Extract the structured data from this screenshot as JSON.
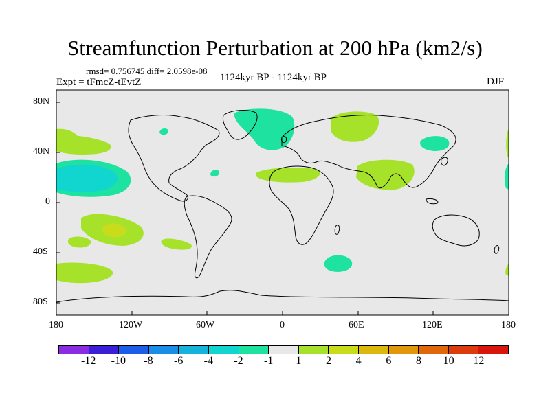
{
  "title": "Streamfunction Perturbation at 200 hPa (km2/s)",
  "stats": "rmsd= 0.756745 diff= 2.0598e-08",
  "experiment": "Expt = tFmcZ-tEvtZ",
  "period": "1124kyr BP - 1124kyr BP",
  "season": "DJF",
  "map": {
    "lat_ticks": [
      "80N",
      "40N",
      "0",
      "40S",
      "80S"
    ],
    "lon_ticks": [
      "180",
      "120W",
      "60W",
      "0",
      "60E",
      "120E",
      "180"
    ],
    "colors": {
      "ocean": "#e8e8e8",
      "land_line": "#000000"
    }
  },
  "colorbar": {
    "colors": [
      "#8b2be2",
      "#3a1fd6",
      "#1b5ee8",
      "#1a8ee6",
      "#14b3dc",
      "#10d6cf",
      "#1ee3a0",
      "#e8e8e8",
      "#a6e22a",
      "#c8dc1c",
      "#dcb80e",
      "#e2960a",
      "#e0680a",
      "#dc3c0c",
      "#d8160e"
    ],
    "labels": [
      "-12",
      "-10",
      "-8",
      "-6",
      "-4",
      "-2",
      "-1",
      "1",
      "2",
      "4",
      "6",
      "8",
      "10",
      "12"
    ]
  },
  "legend": {
    "level_minus2": "#10d6cf",
    "level_minus1": "#1ee3a0",
    "level_2": "#a6e22a",
    "level_4": "#c8dc1c"
  }
}
